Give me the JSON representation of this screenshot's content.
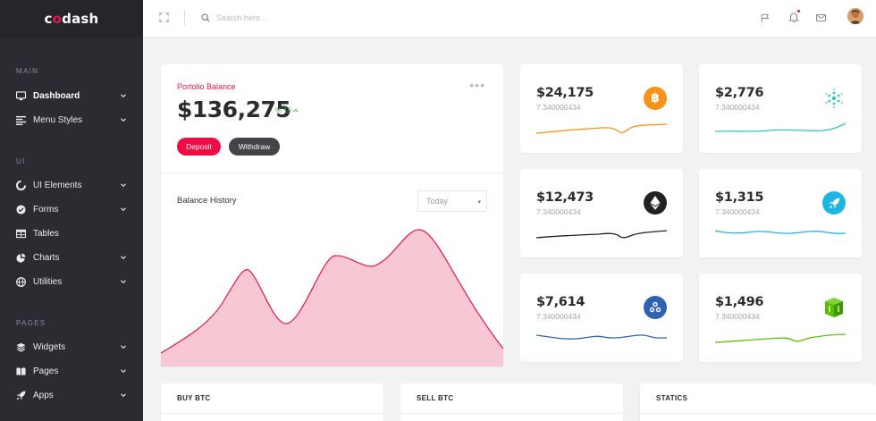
{
  "brand": {
    "name_prefix": "c",
    "name_highlight": "o",
    "name_suffix": "dash",
    "accent": "#e8174b"
  },
  "topbar": {
    "search_placeholder": "Search here...",
    "icons": [
      "expand-icon",
      "search-icon",
      "flag-icon",
      "bell-icon",
      "mail-icon",
      "avatar"
    ]
  },
  "sidebar": {
    "sections": [
      {
        "title": "MAIN"
      },
      {
        "title": "UI"
      },
      {
        "title": "PAGES"
      }
    ],
    "items": [
      {
        "label": "Dashboard",
        "icon": "monitor-icon"
      },
      {
        "label": "Menu Styles",
        "icon": "align-icon"
      },
      {
        "label": "UI Elements",
        "icon": "circle-notch-icon"
      },
      {
        "label": "Forms",
        "icon": "check-circle-icon"
      },
      {
        "label": "Tables",
        "icon": "table-icon"
      },
      {
        "label": "Charts",
        "icon": "pie-chart-icon"
      },
      {
        "label": "Utilities",
        "icon": "globe-icon"
      },
      {
        "label": "Widgets",
        "icon": "layers-icon"
      },
      {
        "label": "Pages",
        "icon": "book-icon"
      },
      {
        "label": "Apps",
        "icon": "rocket-icon"
      }
    ]
  },
  "portfolio": {
    "label": "Portolio Balance",
    "amount": "$136,275",
    "change": "% 15",
    "deposit_label": "Deposit",
    "withdraw_label": "Withdraw",
    "history_label": "Balance History",
    "range_selected": "Today"
  },
  "coins": [
    {
      "value": "$24,175",
      "sub": "7.340000434",
      "icon": "bitcoin-icon",
      "color": "#f7931a"
    },
    {
      "value": "$2,776",
      "sub": "7.340000434",
      "icon": "cardano-icon",
      "color": "#2ec8c8"
    },
    {
      "value": "$12,473",
      "sub": "7.340000434",
      "icon": "ethereum-icon",
      "color": "#222222"
    },
    {
      "value": "$1,315",
      "sub": "7.340000434",
      "icon": "rocket-icon",
      "color": "#1fb5e3"
    },
    {
      "value": "$7,614",
      "sub": "7.340000434",
      "icon": "ripple-icon",
      "color": "#2e63b0"
    },
    {
      "value": "$1,496",
      "sub": "7.340000434",
      "icon": "neo-icon",
      "color": "#58bf00"
    }
  ],
  "bottom_cards": [
    {
      "title": "BUY BTC"
    },
    {
      "title": "SELL BTC"
    },
    {
      "title": "STATICS"
    }
  ]
}
